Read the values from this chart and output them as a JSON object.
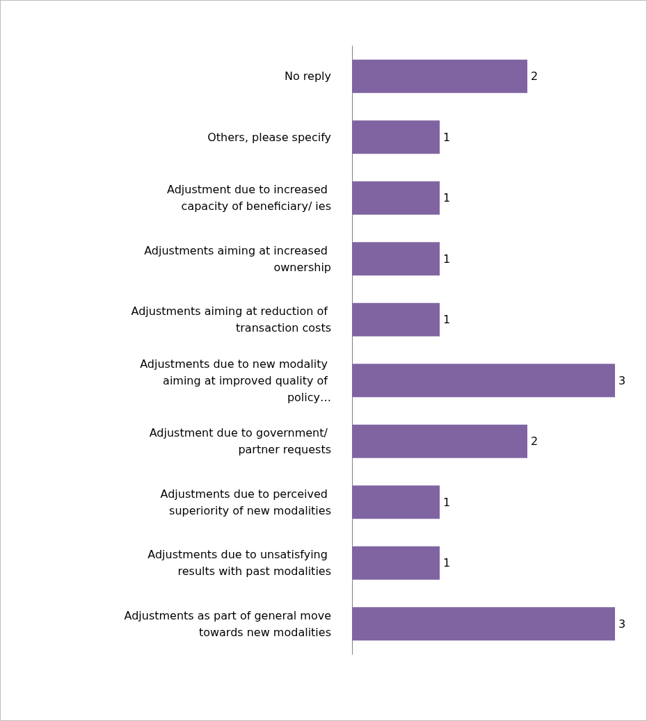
{
  "chart_data": {
    "type": "bar",
    "orientation": "horizontal",
    "categories": [
      "No reply",
      "Others, please specify",
      "Adjustment due to increased capacity of beneficiary/ ies",
      "Adjustments aiming at increased ownership",
      "Adjustments aiming at reduction of transaction costs",
      "Adjustments due to new modality aiming at improved quality of policy…",
      "Adjustment due to government/ partner requests",
      "Adjustments due to perceived superiority of new modalities",
      "Adjustments due to unsatisfying results with past modalities",
      "Adjustments as part of general move towards new modalities"
    ],
    "values": [
      2,
      1,
      1,
      1,
      1,
      3,
      2,
      1,
      1,
      3
    ],
    "color": "#8064a2",
    "data_labels": true
  }
}
